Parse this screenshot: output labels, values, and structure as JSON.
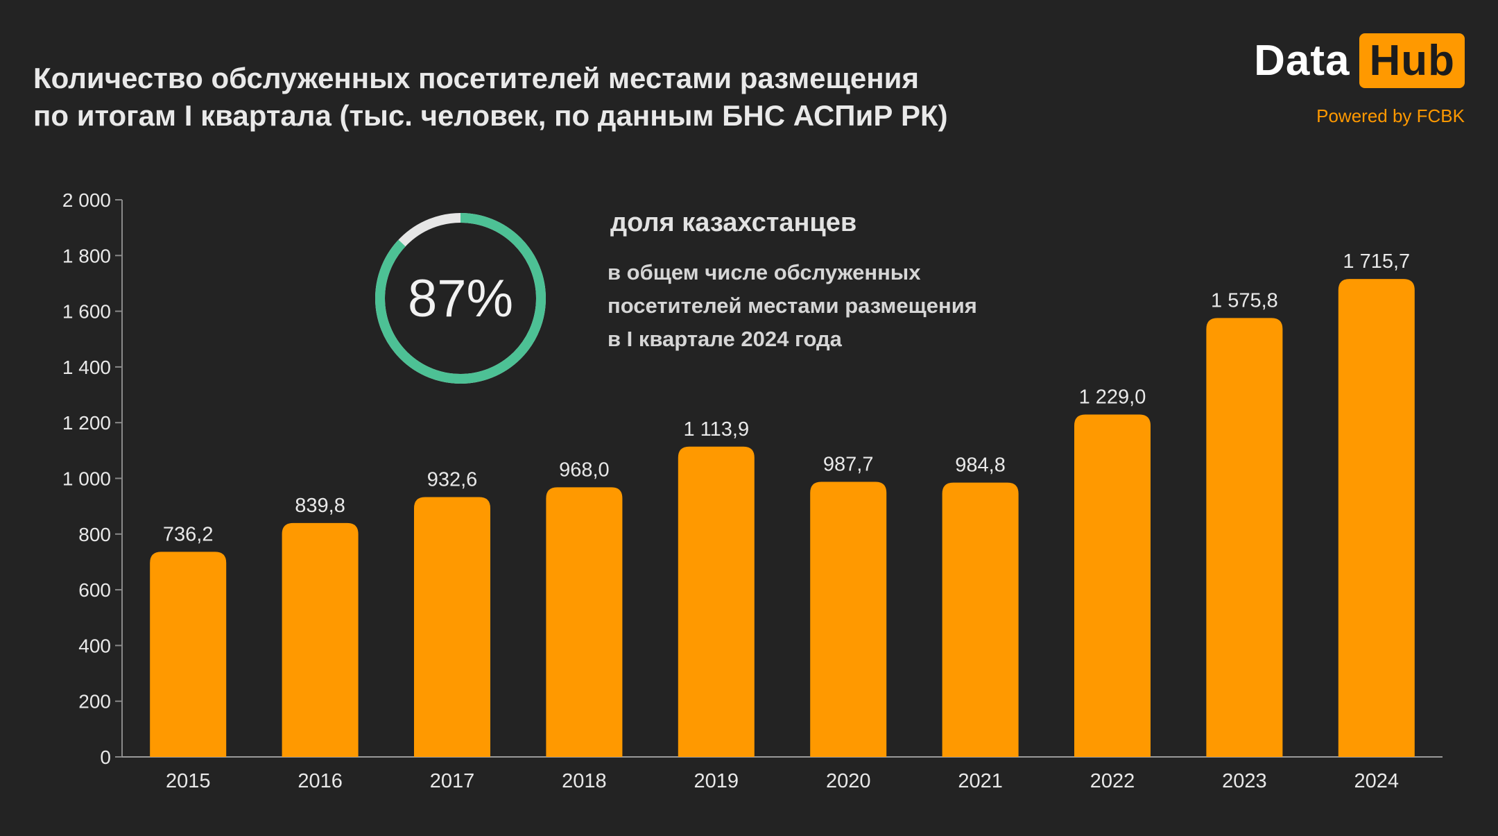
{
  "title": {
    "line1": "Количество обслуженных посетителей местами размещения",
    "line2": "по итогам I квартала (тыс. человек, по данным БНС АСПиР РК)"
  },
  "logo": {
    "data": "Data",
    "hub": "Hub",
    "powered": "Powered by FCBK"
  },
  "colors": {
    "background": "#232323",
    "bar": "#ff9900",
    "ring": "#4dc195",
    "ring_track": "#e6e6e6",
    "text": "#e9e9e9"
  },
  "donut": {
    "value": 87,
    "label": "87%"
  },
  "callout": {
    "heading": "доля казахстанцев",
    "lines": [
      "в общем числе обслуженных",
      "посетителей местами размещения",
      "в I квартале 2024 года"
    ]
  },
  "chart_data": {
    "type": "bar",
    "categories": [
      "2015",
      "2016",
      "2017",
      "2018",
      "2019",
      "2020",
      "2021",
      "2022",
      "2023",
      "2024"
    ],
    "values": [
      736.2,
      839.8,
      932.6,
      968.0,
      1113.9,
      987.7,
      984.8,
      1229.0,
      1575.8,
      1715.7
    ],
    "value_labels": [
      "736,2",
      "839,8",
      "932,6",
      "968,0",
      "1 113,9",
      "987,7",
      "984,8",
      "1 229,0",
      "1 575,8",
      "1 715,7"
    ],
    "ylim": [
      0,
      2000
    ],
    "yticks": [
      0,
      200,
      400,
      600,
      800,
      1000,
      1200,
      1400,
      1600,
      1800,
      2000
    ],
    "ytick_labels": [
      "0",
      "200",
      "400",
      "600",
      "800",
      "1 000",
      "1 200",
      "1 400",
      "1 600",
      "1 800",
      "2 000"
    ],
    "grid": false,
    "xlabel": "",
    "ylabel": ""
  }
}
